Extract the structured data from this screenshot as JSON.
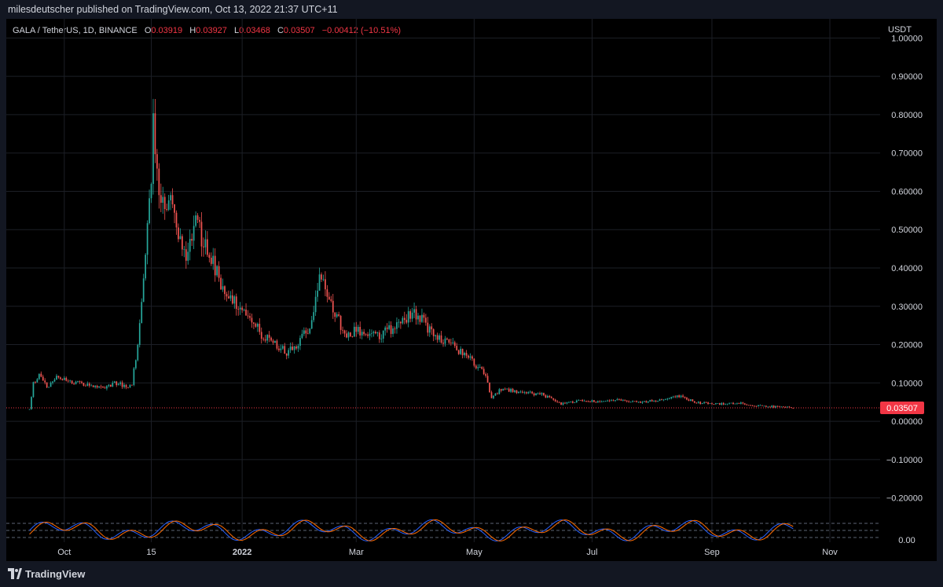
{
  "header": {
    "publisher_line": "milesdeutscher published on TradingView.com, Oct 13, 2022 21:37 UTC+11"
  },
  "legend": {
    "symbol": "GALA / TetherUS, 1D, BINANCE",
    "open_label": "O",
    "open": "0.03919",
    "high_label": "H",
    "high": "0.03927",
    "low_label": "L",
    "low": "0.03468",
    "close_label": "C",
    "close": "0.03507",
    "change": "−0.00412 (−10.51%)"
  },
  "axis": {
    "unit": "USDT"
  },
  "footer": {
    "brand": "TradingView"
  },
  "colors": {
    "up": "#26a69a",
    "down": "#ef5350",
    "background": "#000000",
    "price_line": "#f23645",
    "osc_k": "#2962ff",
    "osc_d": "#ff6d00"
  },
  "chart_data": {
    "type": "candlestick",
    "ylim": [
      -0.25,
      1.05
    ],
    "y_ticks": [
      {
        "value": 1.0,
        "label": "1.00000"
      },
      {
        "value": 0.9,
        "label": "0.90000"
      },
      {
        "value": 0.8,
        "label": "0.80000"
      },
      {
        "value": 0.7,
        "label": "0.70000"
      },
      {
        "value": 0.6,
        "label": "0.60000"
      },
      {
        "value": 0.5,
        "label": "0.50000"
      },
      {
        "value": 0.4,
        "label": "0.40000"
      },
      {
        "value": 0.3,
        "label": "0.30000"
      },
      {
        "value": 0.2,
        "label": "0.20000"
      },
      {
        "value": 0.1,
        "label": "0.10000"
      },
      {
        "value": 0.0,
        "label": "0.00000"
      },
      {
        "value": -0.1,
        "label": "−0.10000"
      },
      {
        "value": -0.2,
        "label": "−0.20000"
      }
    ],
    "last_price": {
      "value": 0.03507,
      "label": "0.03507"
    },
    "x_range": [
      "2021-09-01",
      "2022-11-27"
    ],
    "x_ticks": [
      {
        "date": "2021-10-01",
        "label": "Oct",
        "bold": false
      },
      {
        "date": "2021-11-15",
        "label": "15",
        "bold": false
      },
      {
        "date": "2022-01-01",
        "label": "2022",
        "bold": true
      },
      {
        "date": "2022-03-01",
        "label": "Mar",
        "bold": false
      },
      {
        "date": "2022-05-01",
        "label": "May",
        "bold": false
      },
      {
        "date": "2022-07-01",
        "label": "Jul",
        "bold": false
      },
      {
        "date": "2022-09-01",
        "label": "Sep",
        "bold": false
      },
      {
        "date": "2022-11-01",
        "label": "Nov",
        "bold": false
      }
    ],
    "series": {
      "start_date": "2021-09-13",
      "end_date": "2022-10-13",
      "close_keypoints": [
        [
          "2021-09-13",
          0.03
        ],
        [
          "2021-09-15",
          0.1
        ],
        [
          "2021-09-18",
          0.12
        ],
        [
          "2021-09-22",
          0.09
        ],
        [
          "2021-09-28",
          0.12
        ],
        [
          "2021-10-05",
          0.1
        ],
        [
          "2021-10-15",
          0.095
        ],
        [
          "2021-10-22",
          0.09
        ],
        [
          "2021-10-28",
          0.1
        ],
        [
          "2021-11-02",
          0.09
        ],
        [
          "2021-11-05",
          0.1
        ],
        [
          "2021-11-08",
          0.2
        ],
        [
          "2021-11-11",
          0.38
        ],
        [
          "2021-11-14",
          0.55
        ],
        [
          "2021-11-16",
          0.76
        ],
        [
          "2021-11-18",
          0.65
        ],
        [
          "2021-11-22",
          0.55
        ],
        [
          "2021-11-26",
          0.6
        ],
        [
          "2021-11-30",
          0.47
        ],
        [
          "2021-12-04",
          0.43
        ],
        [
          "2021-12-08",
          0.52
        ],
        [
          "2021-12-12",
          0.47
        ],
        [
          "2021-12-16",
          0.42
        ],
        [
          "2021-12-20",
          0.37
        ],
        [
          "2021-12-24",
          0.33
        ],
        [
          "2021-12-30",
          0.3
        ],
        [
          "2022-01-05",
          0.28
        ],
        [
          "2022-01-12",
          0.22
        ],
        [
          "2022-01-18",
          0.2
        ],
        [
          "2022-01-24",
          0.18
        ],
        [
          "2022-01-30",
          0.2
        ],
        [
          "2022-02-05",
          0.25
        ],
        [
          "2022-02-10",
          0.38
        ],
        [
          "2022-02-14",
          0.33
        ],
        [
          "2022-02-18",
          0.28
        ],
        [
          "2022-02-24",
          0.22
        ],
        [
          "2022-03-01",
          0.24
        ],
        [
          "2022-03-08",
          0.22
        ],
        [
          "2022-03-15",
          0.23
        ],
        [
          "2022-03-22",
          0.25
        ],
        [
          "2022-03-29",
          0.28
        ],
        [
          "2022-04-04",
          0.27
        ],
        [
          "2022-04-10",
          0.22
        ],
        [
          "2022-04-18",
          0.2
        ],
        [
          "2022-04-25",
          0.18
        ],
        [
          "2022-05-03",
          0.14
        ],
        [
          "2022-05-07",
          0.12
        ],
        [
          "2022-05-10",
          0.06
        ],
        [
          "2022-05-15",
          0.085
        ],
        [
          "2022-05-25",
          0.075
        ],
        [
          "2022-06-05",
          0.07
        ],
        [
          "2022-06-15",
          0.045
        ],
        [
          "2022-06-25",
          0.055
        ],
        [
          "2022-07-05",
          0.05
        ],
        [
          "2022-07-15",
          0.055
        ],
        [
          "2022-07-25",
          0.05
        ],
        [
          "2022-08-05",
          0.055
        ],
        [
          "2022-08-15",
          0.065
        ],
        [
          "2022-08-25",
          0.048
        ],
        [
          "2022-09-05",
          0.045
        ],
        [
          "2022-09-15",
          0.048
        ],
        [
          "2022-09-25",
          0.04
        ],
        [
          "2022-10-05",
          0.038
        ],
        [
          "2022-10-13",
          0.035
        ]
      ]
    },
    "oscillator": {
      "type": "stochastic_rsi",
      "ylim": [
        0,
        100
      ],
      "bands": [
        20,
        50,
        80
      ],
      "y_tick_label": "0.00"
    }
  }
}
